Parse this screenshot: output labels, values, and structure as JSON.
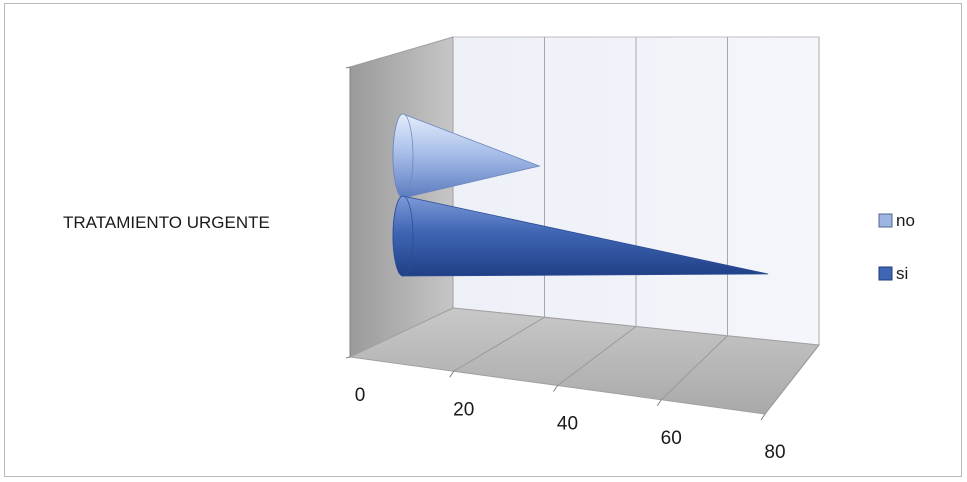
{
  "chart_data": {
    "type": "bar",
    "orientation": "horizontal",
    "shape": "cone-3d",
    "categories": [
      "TRATAMIENTO URGENTE"
    ],
    "series": [
      {
        "name": "no",
        "values": [
          25
        ],
        "color": "#9db5e2"
      },
      {
        "name": "si",
        "values": [
          75
        ],
        "color": "#3f66b4"
      }
    ],
    "x_ticks": [
      "0",
      "20",
      "40",
      "60",
      "80"
    ],
    "xlim": [
      0,
      80
    ],
    "grid": true,
    "legend_position": "right"
  }
}
